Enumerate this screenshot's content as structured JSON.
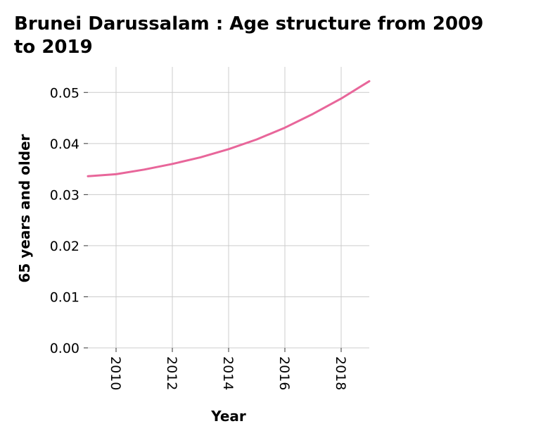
{
  "chart_data": {
    "type": "line",
    "title_lines": [
      "Brunei Darussalam : Age structure from 2009",
      "to 2019"
    ],
    "xlabel": "Year",
    "ylabel": "65 years and older",
    "x": [
      2009,
      2010,
      2011,
      2012,
      2013,
      2014,
      2015,
      2016,
      2017,
      2018,
      2019
    ],
    "series": [
      {
        "values": [
          0.0336,
          0.034,
          0.0349,
          0.036,
          0.0373,
          0.0389,
          0.0408,
          0.0431,
          0.0458,
          0.0488,
          0.0522
        ]
      }
    ],
    "xlim": [
      2009,
      2019
    ],
    "ylim": [
      0,
      0.055
    ],
    "xticks": [
      {
        "value": 2010,
        "label": "2010"
      },
      {
        "value": 2012,
        "label": "2012"
      },
      {
        "value": 2014,
        "label": "2014"
      },
      {
        "value": 2016,
        "label": "2016"
      },
      {
        "value": 2018,
        "label": "2018"
      }
    ],
    "yticks": [
      {
        "value": 0,
        "label": "0.00"
      },
      {
        "value": 0.01,
        "label": "0.01"
      },
      {
        "value": 0.02,
        "label": "0.02"
      },
      {
        "value": 0.03,
        "label": "0.03"
      },
      {
        "value": 0.04,
        "label": "0.04"
      },
      {
        "value": 0.05,
        "label": "0.05"
      }
    ],
    "grid": true,
    "line_color": "#e8669a"
  }
}
